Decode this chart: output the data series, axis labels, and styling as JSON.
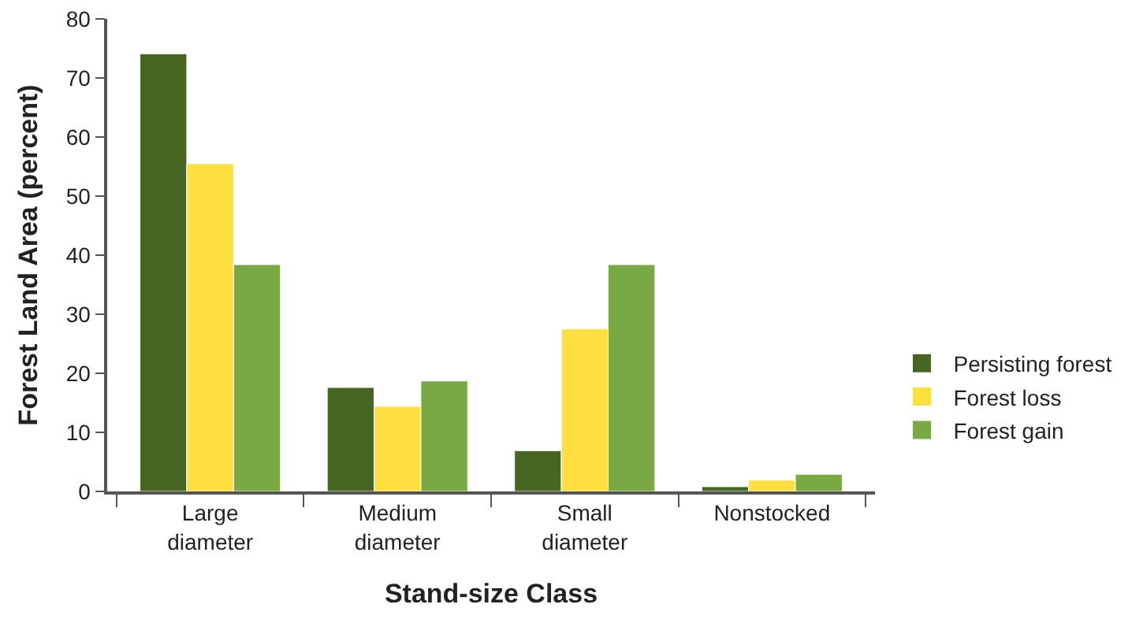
{
  "chart_data": {
    "type": "bar",
    "xlabel": "Stand-size Class",
    "ylabel": "Forest Land Area (percent)",
    "categories": [
      "Large diameter",
      "Medium diameter",
      "Small diameter",
      "Nonstocked"
    ],
    "series": [
      {
        "name": "Persisting forest",
        "color": "#466622",
        "values": [
          74.1,
          17.6,
          6.9,
          0.8
        ]
      },
      {
        "name": "Forest loss",
        "color": "#fde040",
        "values": [
          55.5,
          14.4,
          27.5,
          1.9
        ]
      },
      {
        "name": "Forest gain",
        "color": "#78a942",
        "values": [
          38.4,
          18.7,
          38.4,
          2.9
        ]
      }
    ],
    "ylim": [
      0,
      80
    ],
    "yticks": [
      0,
      10,
      20,
      30,
      40,
      50,
      60,
      70,
      80
    ],
    "grid": false,
    "legend": "right"
  }
}
